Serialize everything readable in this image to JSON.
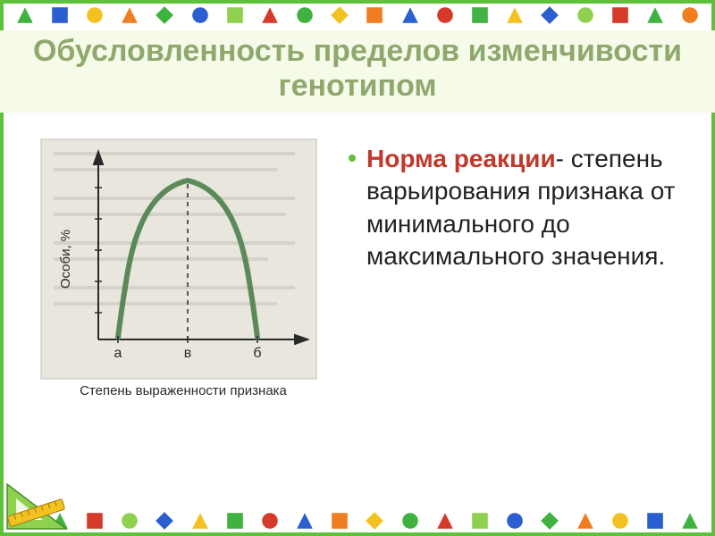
{
  "colors": {
    "frame": "#5fc13a",
    "title": "#8fa86d",
    "title_bg": "#f5fae9",
    "bullet": "#5fc13a",
    "term": "#c0392b",
    "body_text": "#222222",
    "graph_bg": "#e9e6dd",
    "graph_border": "#bfbdb4",
    "curve": "#5a8a5a",
    "axis": "#2a2a2a",
    "graph_label": "#2a2a2a"
  },
  "title": "Обусловленность пределов изменчивости генотипом",
  "bullet": {
    "term": "Норма реакции",
    "dash": "- ",
    "rest": "степень варьирования признака от минимального до максимального значения."
  },
  "graph": {
    "y_label": "Особи, %",
    "x_label": "Степень выраженности признака",
    "ticks": {
      "a": "а",
      "b": "б",
      "v": "в"
    },
    "axis_color": "#2a2a2a",
    "curve_stroke_width": 6,
    "font_size_label": 15,
    "font_size_ticks": 16
  },
  "shapes_palette": {
    "green": "#3fb23f",
    "blue": "#2b5fd0",
    "yellow": "#f4c220",
    "red": "#d63a2a",
    "orange": "#f07d1f",
    "lime": "#8ed14f"
  },
  "shape_sequence": [
    {
      "t": "tri",
      "c": "green"
    },
    {
      "t": "sq",
      "c": "blue"
    },
    {
      "t": "circ",
      "c": "yellow"
    },
    {
      "t": "tri",
      "c": "orange"
    },
    {
      "t": "diam",
      "c": "green"
    },
    {
      "t": "circ",
      "c": "blue"
    },
    {
      "t": "sq",
      "c": "lime"
    },
    {
      "t": "tri",
      "c": "red"
    },
    {
      "t": "circ",
      "c": "green"
    },
    {
      "t": "diam",
      "c": "yellow"
    },
    {
      "t": "sq",
      "c": "orange"
    },
    {
      "t": "tri",
      "c": "blue"
    },
    {
      "t": "circ",
      "c": "red"
    },
    {
      "t": "sq",
      "c": "green"
    },
    {
      "t": "tri",
      "c": "yellow"
    },
    {
      "t": "diam",
      "c": "blue"
    },
    {
      "t": "circ",
      "c": "lime"
    },
    {
      "t": "sq",
      "c": "red"
    },
    {
      "t": "tri",
      "c": "green"
    },
    {
      "t": "circ",
      "c": "orange"
    }
  ],
  "corner_triangle": {
    "fill": "#8ed14f",
    "ruler_fill": "#f4c220",
    "ruler_stroke": "#a07810"
  }
}
